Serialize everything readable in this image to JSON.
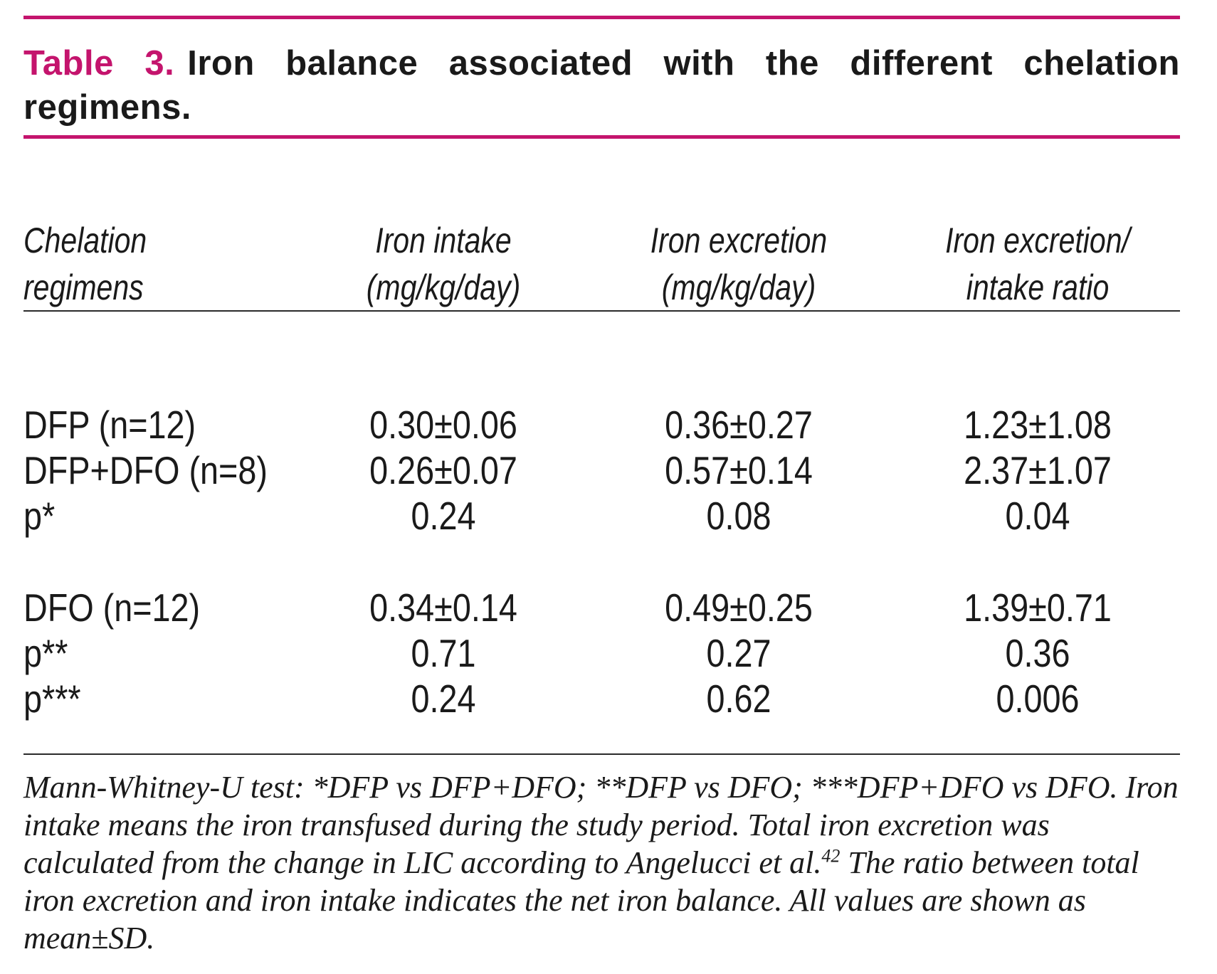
{
  "caption": {
    "label": "Table 3.",
    "title": "Iron balance associated with the different chelation regimens."
  },
  "table": {
    "headers": [
      {
        "line1": "Chelation",
        "line2": "regimens"
      },
      {
        "line1": "Iron intake",
        "line2": "(mg/kg/day)"
      },
      {
        "line1": "Iron excretion",
        "line2": "(mg/kg/day)"
      },
      {
        "line1": "Iron excretion/",
        "line2": "intake ratio"
      }
    ],
    "rows": [
      {
        "regimen": "DFP (n=12)",
        "intake": "0.30±0.06",
        "excretion": "0.36±0.27",
        "ratio": "1.23±1.08"
      },
      {
        "regimen": "DFP+DFO (n=8)",
        "intake": "0.26±0.07",
        "excretion": "0.57±0.14",
        "ratio": "2.37±1.07"
      },
      {
        "regimen": "p*",
        "intake": "0.24",
        "excretion": "0.08",
        "ratio": "0.04"
      },
      {
        "regimen": "DFO (n=12)",
        "intake": "0.34±0.14",
        "excretion": "0.49±0.25",
        "ratio": "1.39±0.71"
      },
      {
        "regimen": "p**",
        "intake": "0.71",
        "excretion": "0.27",
        "ratio": "0.36"
      },
      {
        "regimen": "p***",
        "intake": "0.24",
        "excretion": "0.62",
        "ratio": "0.006"
      }
    ]
  },
  "footnote": {
    "text_before_ref": "Mann-Whitney-U test: *DFP vs DFP+DFO; **DFP vs DFO; ***DFP+DFO vs DFO. Iron intake means the iron transfused during the study period. Total iron excretion was calculated from the change in LIC according to Angelucci et al.",
    "reference": "42",
    "text_after_ref": " The ratio between total iron excretion and iron intake indicates the net iron balance. All values are shown as mean±SD."
  },
  "colors": {
    "accent": "#c4146d",
    "text": "#1a1a1a"
  }
}
